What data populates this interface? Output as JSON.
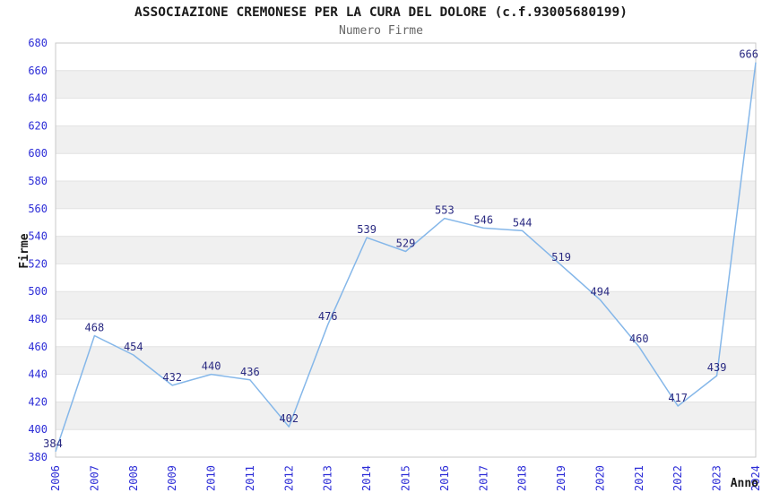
{
  "header": {
    "title": "ASSOCIAZIONE CREMONESE PER LA CURA DEL DOLORE (c.f.93005680199)",
    "subtitle": "Numero Firme"
  },
  "chart_data": {
    "type": "line",
    "title": "ASSOCIAZIONE CREMONESE PER LA CURA DEL DOLORE (c.f.93005680199)",
    "subtitle": "Numero Firme",
    "xlabel": "Anno",
    "ylabel": "Firme",
    "categories": [
      "2006",
      "2007",
      "2008",
      "2009",
      "2010",
      "2011",
      "2012",
      "2013",
      "2014",
      "2015",
      "2016",
      "2017",
      "2018",
      "2019",
      "2020",
      "2021",
      "2022",
      "2023",
      "2024"
    ],
    "series": [
      {
        "name": "Numero Firme",
        "values": [
          384,
          468,
          454,
          432,
          440,
          436,
          402,
          476,
          539,
          529,
          553,
          546,
          544,
          519,
          494,
          460,
          417,
          439,
          666
        ]
      }
    ],
    "ylim": [
      380,
      680
    ],
    "ytick_step": 20,
    "grid": "alternating-horizontal-bands",
    "legend": "none",
    "colors": {
      "line": "#85B7E9",
      "axis_tick_label": "#2D2DD7",
      "data_label": "#2A2A82",
      "band_fill": "#F0F0F0",
      "gridline": "#E2E2E2",
      "plot_border": "#C9C9C9",
      "axis_title": "#1A1A1A",
      "title": "#1A1A1A",
      "subtitle": "#666666"
    }
  }
}
